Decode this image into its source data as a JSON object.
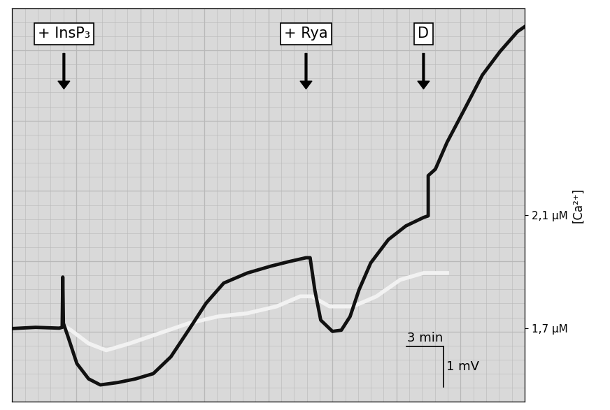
{
  "chart_data": {
    "type": "line",
    "series": [
      {
        "color": "#111111",
        "line_style": "solid",
        "x": [
          0,
          1.9,
          3.81,
          4.05,
          4.1,
          4.15,
          4.52,
          5.24,
          6.19,
          7.14,
          8.57,
          10.0,
          11.43,
          12.86,
          14.29,
          15.71,
          17.14,
          19.05,
          20.95,
          22.38,
          23.81,
          24.14,
          24.52,
          25.0,
          25.95,
          26.67,
          27.38,
          28.1,
          29.05,
          30.48,
          31.9,
          33.33,
          33.71,
          33.71,
          34.29,
          35.24,
          36.67,
          38.1,
          39.52,
          40.95,
          41.52
        ],
        "values": [
          1.82,
          1.85,
          1.83,
          1.85,
          3.1,
          1.95,
          1.62,
          0.95,
          0.57,
          0.42,
          0.48,
          0.57,
          0.7,
          1.12,
          1.78,
          2.45,
          2.95,
          3.2,
          3.37,
          3.48,
          3.58,
          3.58,
          2.78,
          2.03,
          1.75,
          1.78,
          2.12,
          2.78,
          3.45,
          4.03,
          4.37,
          4.58,
          4.62,
          5.62,
          5.78,
          6.45,
          7.28,
          8.12,
          8.7,
          9.2,
          9.32
        ]
      },
      {
        "color": "#f2f2f2",
        "line_style": "solid",
        "x": [
          4.29,
          4.76,
          6.19,
          7.62,
          9.52,
          11.9,
          14.29,
          16.67,
          19.05,
          21.43,
          23.33,
          24.29,
          25.71,
          27.62,
          29.52,
          31.43,
          33.33,
          35.24
        ],
        "values": [
          1.87,
          1.78,
          1.45,
          1.28,
          1.45,
          1.7,
          1.95,
          2.12,
          2.2,
          2.37,
          2.62,
          2.62,
          2.37,
          2.37,
          2.62,
          3.03,
          3.2,
          3.2
        ]
      }
    ],
    "xlim": [
      0,
      41.52
    ],
    "ylim": [
      0,
      9.78
    ],
    "y2lim": [
      1.44,
      2.83
    ],
    "y2ticks": [
      {
        "value": 1.7,
        "label": "1,7 µM"
      },
      {
        "value": 2.1,
        "label": "2,1 µM"
      }
    ],
    "y2_label": "[Ca²⁺]",
    "tick_labels": "y",
    "annotations": [
      {
        "text": "+ InsP₃",
        "x": 4.19
      },
      {
        "text": "+ Rya",
        "x": 23.81
      },
      {
        "text": "D",
        "x": 33.33
      }
    ],
    "scale_bar": {
      "x": 3,
      "x_label": "3 min",
      "y": 1,
      "y_label": "1 mV"
    }
  }
}
